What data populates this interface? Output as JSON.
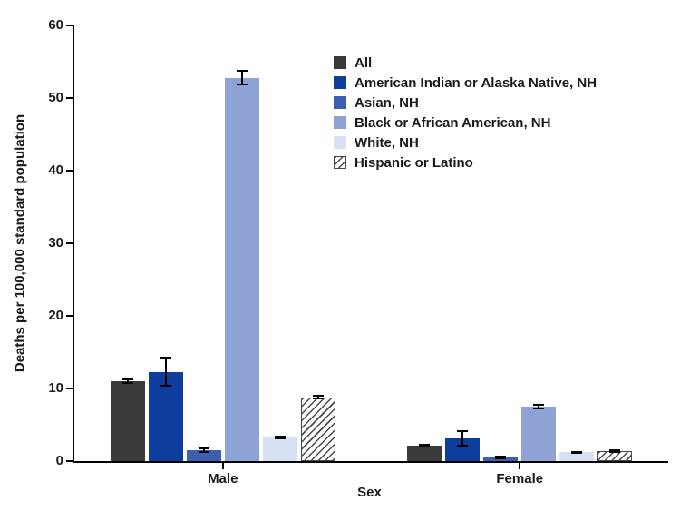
{
  "chart_data": {
    "type": "bar",
    "title": "",
    "xlabel": "Sex",
    "ylabel": "Deaths per 100,000 standard population",
    "ylim": [
      0,
      60
    ],
    "yticks": [
      0,
      10,
      20,
      30,
      40,
      50,
      60
    ],
    "categories": [
      "Male",
      "Female"
    ],
    "grid": false,
    "legend_position": "upper right inside plot",
    "error_bar_color": "#000000",
    "hatch_line_color": "#4a4a4a",
    "series": [
      {
        "name": "All",
        "color": "#3a3a3c",
        "hatch": false,
        "values": [
          11.0,
          2.1
        ],
        "errors": [
          0.25,
          0.15
        ]
      },
      {
        "name": "American Indian or Alaska Native, NH",
        "color": "#0e3d9e",
        "hatch": false,
        "values": [
          12.3,
          3.1
        ],
        "errors": [
          1.9,
          1.0
        ]
      },
      {
        "name": "Asian, NH",
        "color": "#3e5fb0",
        "hatch": false,
        "values": [
          1.5,
          0.5
        ],
        "errors": [
          0.2,
          0.15
        ]
      },
      {
        "name": "Black or African American, NH",
        "color": "#8fa2d6",
        "hatch": false,
        "values": [
          52.8,
          7.5
        ],
        "errors": [
          0.9,
          0.2
        ]
      },
      {
        "name": "White, NH",
        "color": "#d8e1f3",
        "hatch": false,
        "values": [
          3.2,
          1.2
        ],
        "errors": [
          0.12,
          0.1
        ]
      },
      {
        "name": "Hispanic or Latino",
        "color": "#ffffff",
        "hatch": true,
        "values": [
          8.8,
          1.4
        ],
        "errors": [
          0.2,
          0.12
        ]
      }
    ]
  }
}
